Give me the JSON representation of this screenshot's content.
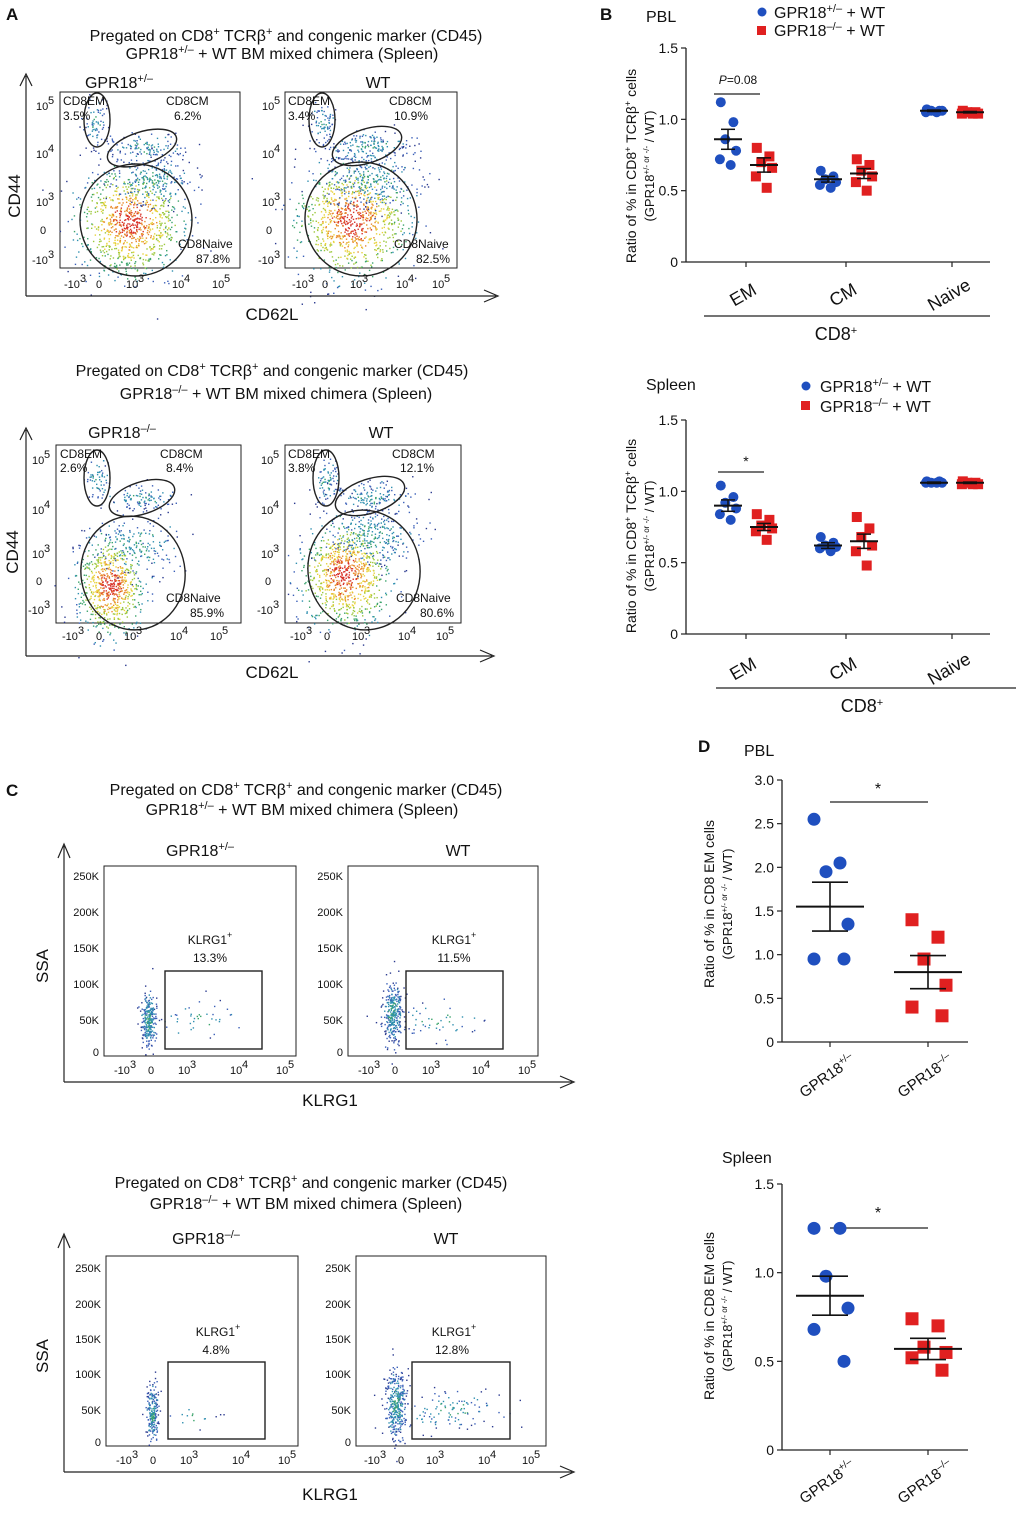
{
  "panel_labels": {
    "a": "A",
    "b": "B",
    "c": "C",
    "d": "D"
  },
  "panel_a": {
    "blocks": [
      {
        "header1": "Pregated on CD8",
        "header1_sup": "+",
        "header1_b": " TCRβ",
        "header1_sup2": "+",
        "header1_c": " and congenic marker (CD45)",
        "header2_a": "GPR18",
        "header2_sup": "+/–",
        "header2_b": " + WT BM mixed chimera (Spleen)",
        "plots": [
          {
            "title": "GPR18",
            "title_sup": "+/–",
            "em_label": "CD8EM",
            "em_pct": "3.5%",
            "cm_label": "CD8CM",
            "cm_pct": "6.2%",
            "naive_label": "CD8Naive",
            "naive_pct": "87.8%"
          },
          {
            "title": "WT",
            "title_sup": "",
            "em_label": "CD8EM",
            "em_pct": "3.4%",
            "cm_label": "CD8CM",
            "cm_pct": "10.9%",
            "naive_label": "CD8Naive",
            "naive_pct": "82.5%"
          }
        ]
      },
      {
        "header1": "Pregated on CD8",
        "header1_sup": "+",
        "header1_b": " TCRβ",
        "header1_sup2": "+",
        "header1_c": " and congenic marker (CD45)",
        "header2_a": "GPR18",
        "header2_sup": "–/–",
        "header2_b": " + WT BM mixed chimera (Spleen)",
        "plots": [
          {
            "title": "GPR18",
            "title_sup": "–/–",
            "em_label": "CD8EM",
            "em_pct": "2.6%",
            "cm_label": "CD8CM",
            "cm_pct": "8.4%",
            "naive_label": "CD8Naive",
            "naive_pct": "85.9%"
          },
          {
            "title": "WT",
            "title_sup": "",
            "em_label": "CD8EM",
            "em_pct": "3.8%",
            "cm_label": "CD8CM",
            "cm_pct": "12.1%",
            "naive_label": "CD8Naive",
            "naive_pct": "80.6%"
          }
        ]
      }
    ],
    "y_axis": "CD44",
    "x_axis": "CD62L",
    "y_ticks": [
      "10",
      "0",
      "-10"
    ],
    "y_tick_exps": [
      "5",
      "4",
      "3",
      "3"
    ],
    "x_ticks": [
      "-10",
      "0",
      "10",
      "10",
      "10",
      "10"
    ]
  },
  "panel_c": {
    "blocks": [
      {
        "header1": "Pregated on CD8",
        "header1_sup": "+",
        "header1_b": " TCRβ",
        "header1_sup2": "+",
        "header1_c": " and congenic marker (CD45)",
        "header2_a": "GPR18",
        "header2_sup": "+/–",
        "header2_b": " + WT BM mixed chimera (Spleen)",
        "plots": [
          {
            "title": "GPR18",
            "title_sup": "+/–",
            "gate_label": "KLRG1",
            "gate_sup": "+",
            "gate_pct": "13.3%"
          },
          {
            "title": "WT",
            "title_sup": "",
            "gate_label": "KLRG1",
            "gate_sup": "+",
            "gate_pct": "11.5%"
          }
        ]
      },
      {
        "header1": "Pregated on CD8",
        "header1_sup": "+",
        "header1_b": " TCRβ",
        "header1_sup2": "+",
        "header1_c": " and congenic marker (CD45)",
        "header2_a": "GPR18",
        "header2_sup": "–/–",
        "header2_b": " + WT BM mixed chimera (Spleen)",
        "plots": [
          {
            "title": "GPR18",
            "title_sup": "–/–",
            "gate_label": "KLRG1",
            "gate_sup": "+",
            "gate_pct": "4.8%"
          },
          {
            "title": "WT",
            "title_sup": "",
            "gate_label": "KLRG1",
            "gate_sup": "+",
            "gate_pct": "12.8%"
          }
        ]
      }
    ],
    "y_axis": "SSA",
    "x_axis": "KLRG1",
    "y_ticks": [
      "250K",
      "200K",
      "150K",
      "100K",
      "50K",
      "0"
    ]
  },
  "chart_data": [
    {
      "type": "scatter",
      "id": "B-PBL",
      "title": "PBL",
      "ylabel": "Ratio of % in CD8+ TCRβ+ cells (GPR18+/- or -/- / WT)",
      "ylim": [
        0,
        1.5
      ],
      "yticks": [
        "0",
        "0.5",
        "1.0",
        "1.5"
      ],
      "categories": [
        "EM",
        "CM",
        "Naive"
      ],
      "group_label": "CD8",
      "group_sup": "+",
      "legend": [
        {
          "name": "GPR18",
          "sup": "+/–",
          "suffix": " + WT",
          "color": "#1f4fbf",
          "marker": "circle"
        },
        {
          "name": "GPR18",
          "sup": "–/–",
          "suffix": " + WT",
          "color": "#e02020",
          "marker": "square"
        }
      ],
      "series": [
        {
          "name": "GPR18+/- + WT",
          "values": [
            [
              1.12,
              0.98,
              0.86,
              0.78,
              0.72,
              0.68
            ],
            [
              0.64,
              0.6,
              0.58,
              0.56,
              0.54,
              0.52
            ],
            [
              1.07,
              1.06,
              1.06,
              1.06,
              1.05,
              1.05
            ]
          ],
          "mean": [
            0.86,
            0.58,
            1.06
          ],
          "sem": [
            0.07,
            0.02,
            0.005
          ]
        },
        {
          "name": "GPR18-/- + WT",
          "values": [
            [
              0.8,
              0.74,
              0.7,
              0.66,
              0.6,
              0.52
            ],
            [
              0.72,
              0.68,
              0.64,
              0.6,
              0.56,
              0.5
            ],
            [
              1.06,
              1.05,
              1.05,
              1.04,
              1.04,
              1.04
            ]
          ],
          "mean": [
            0.68,
            0.62,
            1.05
          ],
          "sem": [
            0.05,
            0.035,
            0.005
          ]
        }
      ],
      "annotation": {
        "text_i": "P",
        "text": "=0.08",
        "between": "EM"
      }
    },
    {
      "type": "scatter",
      "id": "B-Spleen",
      "title": "Spleen",
      "ylabel": "Ratio of % in CD8+ TCRβ+ cells (GPR18+/- or -/- / WT)",
      "ylim": [
        0,
        1.5
      ],
      "yticks": [
        "0",
        "0.5",
        "1.0",
        "1.5"
      ],
      "categories": [
        "EM",
        "CM",
        "Naive"
      ],
      "group_label": "CD8",
      "group_sup": "+",
      "legend": [
        {
          "name": "GPR18",
          "sup": "+/–",
          "suffix": " + WT",
          "color": "#1f4fbf",
          "marker": "circle"
        },
        {
          "name": "GPR18",
          "sup": "–/–",
          "suffix": " + WT",
          "color": "#e02020",
          "marker": "square"
        }
      ],
      "series": [
        {
          "name": "GPR18+/- + WT",
          "values": [
            [
              1.04,
              0.96,
              0.92,
              0.88,
              0.84,
              0.8
            ],
            [
              0.68,
              0.64,
              0.62,
              0.61,
              0.6,
              0.58
            ],
            [
              1.07,
              1.07,
              1.06,
              1.06,
              1.06,
              1.06
            ]
          ],
          "mean": [
            0.9,
            0.62,
            1.06
          ],
          "sem": [
            0.04,
            0.02,
            0.005
          ]
        },
        {
          "name": "GPR18-/- + WT",
          "values": [
            [
              0.84,
              0.8,
              0.76,
              0.74,
              0.72,
              0.66
            ],
            [
              0.82,
              0.74,
              0.68,
              0.62,
              0.58,
              0.48
            ],
            [
              1.07,
              1.06,
              1.06,
              1.05,
              1.05,
              1.05
            ]
          ],
          "mean": [
            0.75,
            0.65,
            1.06
          ],
          "sem": [
            0.025,
            0.05,
            0.005
          ]
        }
      ],
      "annotation": {
        "text": "*",
        "between": "EM"
      }
    },
    {
      "type": "scatter",
      "id": "D-PBL",
      "title": "PBL",
      "ylabel": "Ratio of % in CD8 EM cells (GPR18+/- or -/- / WT)",
      "ylim": [
        0,
        3.0
      ],
      "yticks": [
        "0",
        "0.5",
        "1.0",
        "1.5",
        "2.0",
        "2.5",
        "3.0"
      ],
      "categories": [
        "GPR18+/-",
        "GPR18-/-"
      ],
      "category_labels": [
        {
          "name": "GPR18",
          "sup": "+/–"
        },
        {
          "name": "GPR18",
          "sup": "–/–"
        }
      ],
      "series": [
        {
          "name": "GPR18+/-",
          "color": "#1f4fbf",
          "marker": "circle",
          "values": [
            2.55,
            2.05,
            1.95,
            1.35,
            0.95,
            0.95
          ],
          "mean": 1.55,
          "sem": 0.28
        },
        {
          "name": "GPR18-/-",
          "color": "#e02020",
          "marker": "square",
          "values": [
            1.4,
            1.2,
            0.95,
            0.65,
            0.4,
            0.3
          ],
          "mean": 0.8,
          "sem": 0.19
        }
      ],
      "annotation": {
        "text": "*"
      }
    },
    {
      "type": "scatter",
      "id": "D-Spleen",
      "title": "Spleen",
      "ylabel": "Ratio of % in CD8 EM cells (GPR18+/- or -/- / WT)",
      "ylim": [
        0,
        1.5
      ],
      "yticks": [
        "0",
        "0.5",
        "1.0",
        "1.5"
      ],
      "categories": [
        "GPR18+/-",
        "GPR18-/-"
      ],
      "category_labels": [
        {
          "name": "GPR18",
          "sup": "+/–"
        },
        {
          "name": "GPR18",
          "sup": "–/–"
        }
      ],
      "series": [
        {
          "name": "GPR18+/-",
          "color": "#1f4fbf",
          "marker": "circle",
          "values": [
            1.25,
            1.25,
            0.98,
            0.8,
            0.68,
            0.5
          ],
          "mean": 0.87,
          "sem": 0.11
        },
        {
          "name": "GPR18-/-",
          "color": "#e02020",
          "marker": "square",
          "values": [
            0.74,
            0.7,
            0.58,
            0.55,
            0.52,
            0.45
          ],
          "mean": 0.57,
          "sem": 0.06
        }
      ],
      "annotation": {
        "text": "*"
      }
    }
  ]
}
